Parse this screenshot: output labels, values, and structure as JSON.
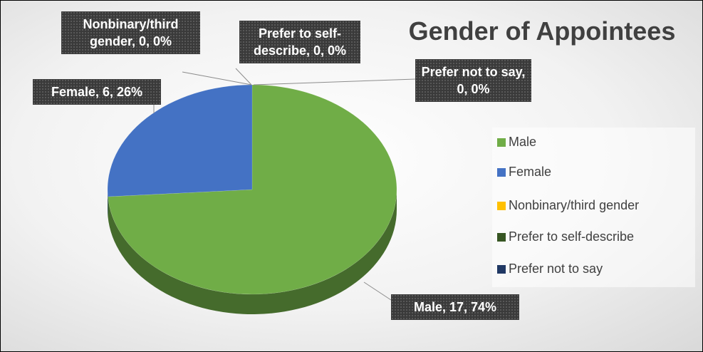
{
  "chart_data": {
    "type": "pie",
    "title": "Gender of Appointees",
    "categories": [
      "Male",
      "Female",
      "Nonbinary/third gender",
      "Prefer to self-describe",
      "Prefer not to say"
    ],
    "values": [
      17,
      6,
      0,
      0,
      0
    ],
    "value_labels": [
      "Male, 17, 74%",
      "Female, 6, 26%",
      "Nonbinary/third gender, 0, 0%",
      "Prefer to self-describe, 0, 0%",
      "Prefer not to say, 0, 0%"
    ],
    "colors": [
      "#70ad47",
      "#4472c4",
      "#ffc000",
      "#375623",
      "#203864"
    ],
    "legend": "right"
  }
}
